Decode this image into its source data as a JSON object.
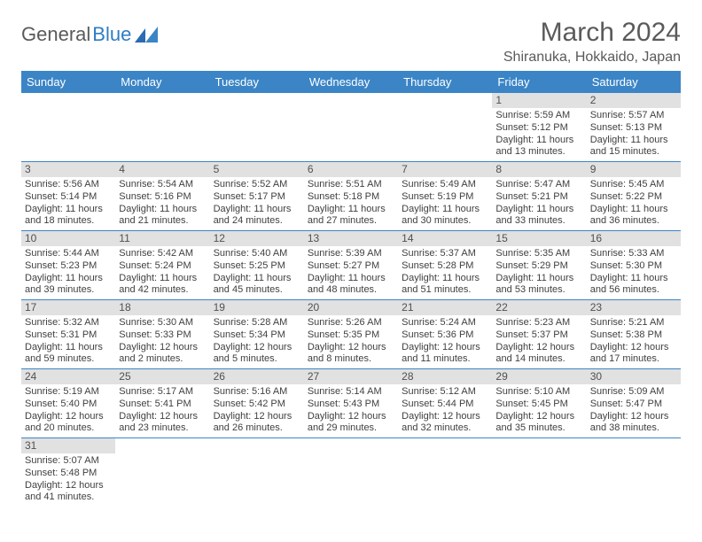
{
  "brand": {
    "part1": "General",
    "part2": "Blue"
  },
  "title": "March 2024",
  "location": "Shiranuka, Hokkaido, Japan",
  "colors": {
    "header_bg": "#3b85c6",
    "header_text": "#ffffff",
    "daynum_bg": "#e1e1e1",
    "text": "#404040",
    "rule": "#3b85c6"
  },
  "day_names": [
    "Sunday",
    "Monday",
    "Tuesday",
    "Wednesday",
    "Thursday",
    "Friday",
    "Saturday"
  ],
  "weeks": [
    [
      null,
      null,
      null,
      null,
      null,
      {
        "d": "1",
        "sr": "Sunrise: 5:59 AM",
        "ss": "Sunset: 5:12 PM",
        "dl1": "Daylight: 11 hours",
        "dl2": "and 13 minutes."
      },
      {
        "d": "2",
        "sr": "Sunrise: 5:57 AM",
        "ss": "Sunset: 5:13 PM",
        "dl1": "Daylight: 11 hours",
        "dl2": "and 15 minutes."
      }
    ],
    [
      {
        "d": "3",
        "sr": "Sunrise: 5:56 AM",
        "ss": "Sunset: 5:14 PM",
        "dl1": "Daylight: 11 hours",
        "dl2": "and 18 minutes."
      },
      {
        "d": "4",
        "sr": "Sunrise: 5:54 AM",
        "ss": "Sunset: 5:16 PM",
        "dl1": "Daylight: 11 hours",
        "dl2": "and 21 minutes."
      },
      {
        "d": "5",
        "sr": "Sunrise: 5:52 AM",
        "ss": "Sunset: 5:17 PM",
        "dl1": "Daylight: 11 hours",
        "dl2": "and 24 minutes."
      },
      {
        "d": "6",
        "sr": "Sunrise: 5:51 AM",
        "ss": "Sunset: 5:18 PM",
        "dl1": "Daylight: 11 hours",
        "dl2": "and 27 minutes."
      },
      {
        "d": "7",
        "sr": "Sunrise: 5:49 AM",
        "ss": "Sunset: 5:19 PM",
        "dl1": "Daylight: 11 hours",
        "dl2": "and 30 minutes."
      },
      {
        "d": "8",
        "sr": "Sunrise: 5:47 AM",
        "ss": "Sunset: 5:21 PM",
        "dl1": "Daylight: 11 hours",
        "dl2": "and 33 minutes."
      },
      {
        "d": "9",
        "sr": "Sunrise: 5:45 AM",
        "ss": "Sunset: 5:22 PM",
        "dl1": "Daylight: 11 hours",
        "dl2": "and 36 minutes."
      }
    ],
    [
      {
        "d": "10",
        "sr": "Sunrise: 5:44 AM",
        "ss": "Sunset: 5:23 PM",
        "dl1": "Daylight: 11 hours",
        "dl2": "and 39 minutes."
      },
      {
        "d": "11",
        "sr": "Sunrise: 5:42 AM",
        "ss": "Sunset: 5:24 PM",
        "dl1": "Daylight: 11 hours",
        "dl2": "and 42 minutes."
      },
      {
        "d": "12",
        "sr": "Sunrise: 5:40 AM",
        "ss": "Sunset: 5:25 PM",
        "dl1": "Daylight: 11 hours",
        "dl2": "and 45 minutes."
      },
      {
        "d": "13",
        "sr": "Sunrise: 5:39 AM",
        "ss": "Sunset: 5:27 PM",
        "dl1": "Daylight: 11 hours",
        "dl2": "and 48 minutes."
      },
      {
        "d": "14",
        "sr": "Sunrise: 5:37 AM",
        "ss": "Sunset: 5:28 PM",
        "dl1": "Daylight: 11 hours",
        "dl2": "and 51 minutes."
      },
      {
        "d": "15",
        "sr": "Sunrise: 5:35 AM",
        "ss": "Sunset: 5:29 PM",
        "dl1": "Daylight: 11 hours",
        "dl2": "and 53 minutes."
      },
      {
        "d": "16",
        "sr": "Sunrise: 5:33 AM",
        "ss": "Sunset: 5:30 PM",
        "dl1": "Daylight: 11 hours",
        "dl2": "and 56 minutes."
      }
    ],
    [
      {
        "d": "17",
        "sr": "Sunrise: 5:32 AM",
        "ss": "Sunset: 5:31 PM",
        "dl1": "Daylight: 11 hours",
        "dl2": "and 59 minutes."
      },
      {
        "d": "18",
        "sr": "Sunrise: 5:30 AM",
        "ss": "Sunset: 5:33 PM",
        "dl1": "Daylight: 12 hours",
        "dl2": "and 2 minutes."
      },
      {
        "d": "19",
        "sr": "Sunrise: 5:28 AM",
        "ss": "Sunset: 5:34 PM",
        "dl1": "Daylight: 12 hours",
        "dl2": "and 5 minutes."
      },
      {
        "d": "20",
        "sr": "Sunrise: 5:26 AM",
        "ss": "Sunset: 5:35 PM",
        "dl1": "Daylight: 12 hours",
        "dl2": "and 8 minutes."
      },
      {
        "d": "21",
        "sr": "Sunrise: 5:24 AM",
        "ss": "Sunset: 5:36 PM",
        "dl1": "Daylight: 12 hours",
        "dl2": "and 11 minutes."
      },
      {
        "d": "22",
        "sr": "Sunrise: 5:23 AM",
        "ss": "Sunset: 5:37 PM",
        "dl1": "Daylight: 12 hours",
        "dl2": "and 14 minutes."
      },
      {
        "d": "23",
        "sr": "Sunrise: 5:21 AM",
        "ss": "Sunset: 5:38 PM",
        "dl1": "Daylight: 12 hours",
        "dl2": "and 17 minutes."
      }
    ],
    [
      {
        "d": "24",
        "sr": "Sunrise: 5:19 AM",
        "ss": "Sunset: 5:40 PM",
        "dl1": "Daylight: 12 hours",
        "dl2": "and 20 minutes."
      },
      {
        "d": "25",
        "sr": "Sunrise: 5:17 AM",
        "ss": "Sunset: 5:41 PM",
        "dl1": "Daylight: 12 hours",
        "dl2": "and 23 minutes."
      },
      {
        "d": "26",
        "sr": "Sunrise: 5:16 AM",
        "ss": "Sunset: 5:42 PM",
        "dl1": "Daylight: 12 hours",
        "dl2": "and 26 minutes."
      },
      {
        "d": "27",
        "sr": "Sunrise: 5:14 AM",
        "ss": "Sunset: 5:43 PM",
        "dl1": "Daylight: 12 hours",
        "dl2": "and 29 minutes."
      },
      {
        "d": "28",
        "sr": "Sunrise: 5:12 AM",
        "ss": "Sunset: 5:44 PM",
        "dl1": "Daylight: 12 hours",
        "dl2": "and 32 minutes."
      },
      {
        "d": "29",
        "sr": "Sunrise: 5:10 AM",
        "ss": "Sunset: 5:45 PM",
        "dl1": "Daylight: 12 hours",
        "dl2": "and 35 minutes."
      },
      {
        "d": "30",
        "sr": "Sunrise: 5:09 AM",
        "ss": "Sunset: 5:47 PM",
        "dl1": "Daylight: 12 hours",
        "dl2": "and 38 minutes."
      }
    ],
    [
      {
        "d": "31",
        "sr": "Sunrise: 5:07 AM",
        "ss": "Sunset: 5:48 PM",
        "dl1": "Daylight: 12 hours",
        "dl2": "and 41 minutes."
      },
      null,
      null,
      null,
      null,
      null,
      null
    ]
  ]
}
